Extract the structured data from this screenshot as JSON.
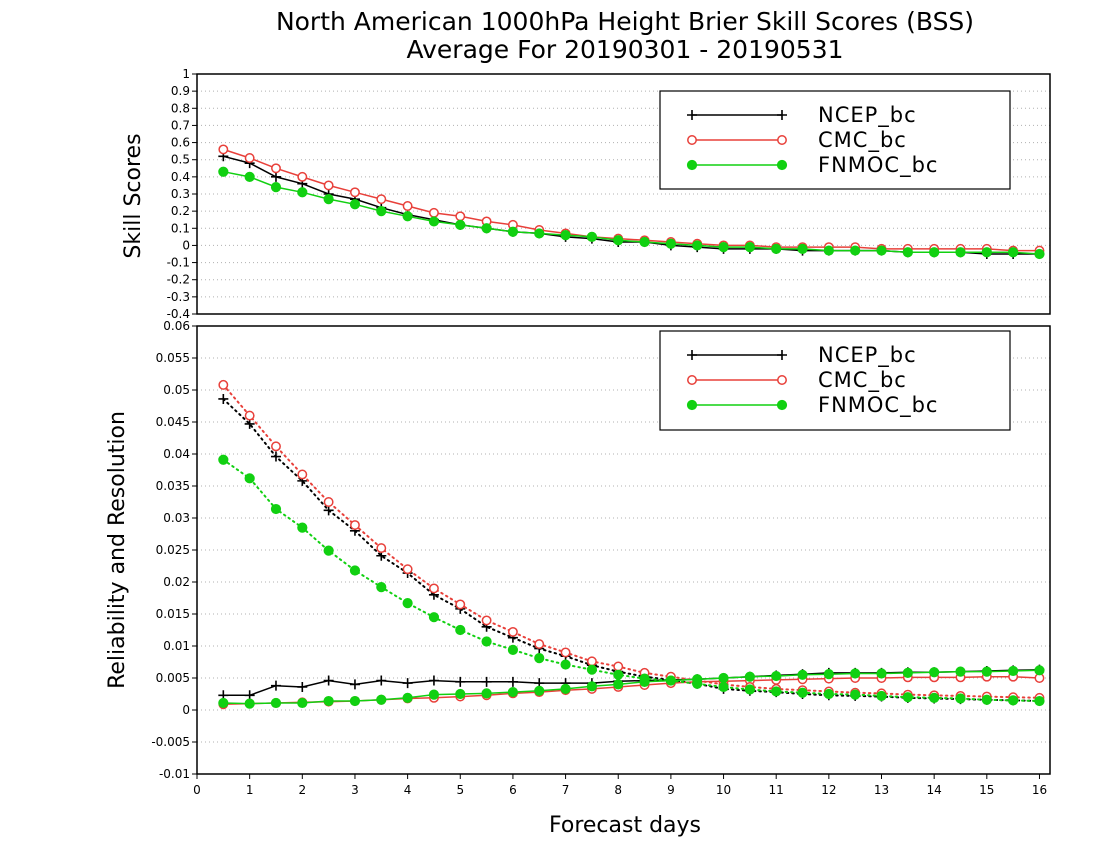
{
  "title": {
    "line1": "North American 1000hPa Height Brier Skill Scores (BSS)",
    "line2": "Average For 20190301 - 20190531"
  },
  "colors": {
    "ncep": "#000000",
    "cmc": "#e8403a",
    "fnmoc": "#11d011",
    "grid": "#b0b0b0"
  },
  "chart_data": [
    {
      "type": "line",
      "panel": "top",
      "title": "North American 1000hPa Height Brier Skill Scores (BSS)",
      "subtitle": "Average For 20190301 - 20190531",
      "xlabel": "",
      "ylabel": "Skill Scores",
      "xlim": [
        0,
        16.2
      ],
      "ylim": [
        -0.4,
        1
      ],
      "yticks": [
        "1",
        "0.9",
        "0.8",
        "0.7",
        "0.6",
        "0.5",
        "0.4",
        "0.3",
        "0.2",
        "0.1",
        "0",
        "-0.1",
        "-0.2",
        "-0.3",
        "-0.4"
      ],
      "grid": true,
      "legend_position": "top-right",
      "x": [
        0.5,
        1,
        1.5,
        2,
        2.5,
        3,
        3.5,
        4,
        4.5,
        5,
        5.5,
        6,
        6.5,
        7,
        7.5,
        8,
        8.5,
        9,
        9.5,
        10,
        10.5,
        11,
        11.5,
        12,
        12.5,
        13,
        13.5,
        14,
        14.5,
        15,
        15.5,
        16
      ],
      "series": [
        {
          "name": "NCEP_bc",
          "marker": "plus",
          "linestyle": "solid",
          "color": "#000000",
          "values": [
            0.52,
            0.48,
            0.4,
            0.36,
            0.3,
            0.27,
            0.22,
            0.18,
            0.15,
            0.12,
            0.1,
            0.08,
            0.07,
            0.05,
            0.04,
            0.02,
            0.02,
            0.0,
            -0.01,
            -0.02,
            -0.02,
            -0.02,
            -0.03,
            -0.03,
            -0.03,
            -0.03,
            -0.04,
            -0.04,
            -0.04,
            -0.05,
            -0.05,
            -0.05
          ]
        },
        {
          "name": "CMC_bc",
          "marker": "open-circle",
          "linestyle": "solid",
          "color": "#e8403a",
          "values": [
            0.56,
            0.51,
            0.45,
            0.4,
            0.35,
            0.31,
            0.27,
            0.23,
            0.19,
            0.17,
            0.14,
            0.12,
            0.09,
            0.07,
            0.05,
            0.04,
            0.03,
            0.02,
            0.01,
            0.0,
            0.0,
            -0.01,
            -0.01,
            -0.01,
            -0.01,
            -0.02,
            -0.02,
            -0.02,
            -0.02,
            -0.02,
            -0.03,
            -0.03
          ]
        },
        {
          "name": "FNMOC_bc",
          "marker": "filled-circle",
          "linestyle": "solid",
          "color": "#11d011",
          "values": [
            0.43,
            0.4,
            0.34,
            0.31,
            0.27,
            0.24,
            0.2,
            0.17,
            0.14,
            0.12,
            0.1,
            0.08,
            0.07,
            0.06,
            0.05,
            0.03,
            0.02,
            0.01,
            0.0,
            -0.01,
            -0.01,
            -0.02,
            -0.02,
            -0.03,
            -0.03,
            -0.03,
            -0.04,
            -0.04,
            -0.04,
            -0.04,
            -0.04,
            -0.05
          ]
        }
      ]
    },
    {
      "type": "line",
      "panel": "bottom",
      "title": "",
      "xlabel": "Forecast days",
      "ylabel": "Reliability and Resolution",
      "xlim": [
        0,
        16.2
      ],
      "ylim": [
        -0.01,
        0.06
      ],
      "xticks": [
        "0",
        "1",
        "2",
        "3",
        "4",
        "5",
        "6",
        "7",
        "8",
        "9",
        "10",
        "11",
        "12",
        "13",
        "14",
        "15",
        "16"
      ],
      "yticks": [
        "0.06",
        "0.055",
        "0.05",
        "0.045",
        "0.04",
        "0.035",
        "0.03",
        "0.025",
        "0.02",
        "0.015",
        "0.01",
        "0.005",
        "0",
        "-0.005",
        "-0.01"
      ],
      "grid": true,
      "legend_position": "top-right",
      "x": [
        0.5,
        1,
        1.5,
        2,
        2.5,
        3,
        3.5,
        4,
        4.5,
        5,
        5.5,
        6,
        6.5,
        7,
        7.5,
        8,
        8.5,
        9,
        9.5,
        10,
        10.5,
        11,
        11.5,
        12,
        12.5,
        13,
        13.5,
        14,
        14.5,
        15,
        15.5,
        16
      ],
      "series": [
        {
          "name": "NCEP_bc",
          "measure": "reliability",
          "marker": "plus",
          "linestyle": "solid",
          "color": "#000000",
          "values": [
            0.0023,
            0.0023,
            0.0038,
            0.0036,
            0.0046,
            0.004,
            0.0046,
            0.0042,
            0.0046,
            0.0044,
            0.0044,
            0.0044,
            0.0042,
            0.0042,
            0.0042,
            0.0045,
            0.0046,
            0.0047,
            0.0048,
            0.005,
            0.0052,
            0.0054,
            0.0056,
            0.0058,
            0.0058,
            0.0058,
            0.0059,
            0.0059,
            0.006,
            0.0061,
            0.0062,
            0.0063
          ]
        },
        {
          "name": "NCEP_bc",
          "measure": "resolution",
          "marker": "plus",
          "linestyle": "dotted",
          "color": "#000000",
          "values": [
            0.0486,
            0.0447,
            0.0396,
            0.0358,
            0.0312,
            0.028,
            0.0241,
            0.0214,
            0.018,
            0.0158,
            0.013,
            0.0113,
            0.0096,
            0.0084,
            0.007,
            0.006,
            0.0052,
            0.0047,
            0.0041,
            0.0033,
            0.003,
            0.0028,
            0.0025,
            0.0023,
            0.0022,
            0.0021,
            0.0019,
            0.0018,
            0.0017,
            0.0016,
            0.0015,
            0.0014
          ]
        },
        {
          "name": "CMC_bc",
          "measure": "reliability",
          "marker": "open-circle",
          "linestyle": "solid",
          "color": "#e8403a",
          "values": [
            0.0009,
            0.001,
            0.0011,
            0.0012,
            0.0013,
            0.0014,
            0.0016,
            0.0018,
            0.0019,
            0.0021,
            0.0023,
            0.0026,
            0.0028,
            0.0031,
            0.0033,
            0.0036,
            0.0039,
            0.0042,
            0.0044,
            0.0045,
            0.0046,
            0.0047,
            0.0048,
            0.0049,
            0.005,
            0.005,
            0.0051,
            0.0051,
            0.0051,
            0.0052,
            0.0052,
            0.005
          ]
        },
        {
          "name": "CMC_bc",
          "measure": "resolution",
          "marker": "open-circle",
          "linestyle": "dotted",
          "color": "#e8403a",
          "values": [
            0.0508,
            0.046,
            0.0412,
            0.0368,
            0.0325,
            0.0289,
            0.0253,
            0.022,
            0.019,
            0.0165,
            0.014,
            0.0122,
            0.0103,
            0.009,
            0.0076,
            0.0068,
            0.0058,
            0.0052,
            0.0046,
            0.004,
            0.0036,
            0.0033,
            0.0031,
            0.0029,
            0.0027,
            0.0026,
            0.0024,
            0.0023,
            0.0022,
            0.0021,
            0.002,
            0.0019
          ]
        },
        {
          "name": "FNMOC_bc",
          "measure": "reliability",
          "marker": "filled-circle",
          "linestyle": "solid",
          "color": "#11d011",
          "values": [
            0.0011,
            0.001,
            0.0011,
            0.0011,
            0.0014,
            0.0014,
            0.0016,
            0.0019,
            0.0024,
            0.0025,
            0.0026,
            0.0028,
            0.003,
            0.0033,
            0.0037,
            0.004,
            0.0044,
            0.0046,
            0.0048,
            0.005,
            0.0052,
            0.0053,
            0.0055,
            0.0056,
            0.0057,
            0.0057,
            0.0058,
            0.0059,
            0.006,
            0.006,
            0.0061,
            0.0062
          ]
        },
        {
          "name": "FNMOC_bc",
          "measure": "resolution",
          "marker": "filled-circle",
          "linestyle": "dotted",
          "color": "#11d011",
          "values": [
            0.0391,
            0.0362,
            0.0314,
            0.0285,
            0.0249,
            0.0218,
            0.0192,
            0.0167,
            0.0145,
            0.0125,
            0.0107,
            0.0094,
            0.0081,
            0.0071,
            0.0063,
            0.0055,
            0.0049,
            0.0046,
            0.0041,
            0.0036,
            0.0032,
            0.0029,
            0.0027,
            0.0025,
            0.0024,
            0.0022,
            0.002,
            0.0019,
            0.0018,
            0.0016,
            0.0015,
            0.0014
          ]
        }
      ],
      "legend": [
        "NCEP_bc",
        "CMC_bc",
        "FNMOC_bc"
      ]
    }
  ]
}
